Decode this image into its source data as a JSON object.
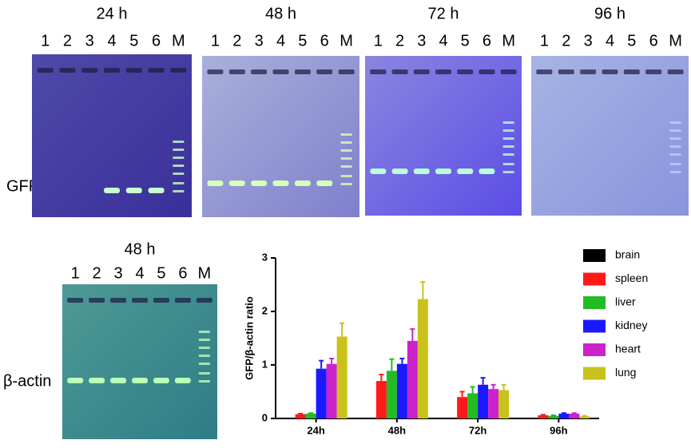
{
  "gels": [
    {
      "title": "24 h",
      "lanes": [
        "1",
        "2",
        "3",
        "4",
        "5",
        "6",
        "M"
      ]
    },
    {
      "title": "48 h",
      "lanes": [
        "1",
        "2",
        "3",
        "4",
        "5",
        "6",
        "M"
      ]
    },
    {
      "title": "72 h",
      "lanes": [
        "1",
        "2",
        "3",
        "4",
        "5",
        "6",
        "M"
      ]
    },
    {
      "title": "96 h",
      "lanes": [
        "1",
        "2",
        "3",
        "4",
        "5",
        "6",
        "M"
      ]
    }
  ],
  "gfp_label": "GFP",
  "actin_label": "β-actin",
  "actin_gel": {
    "title": "48 h",
    "lanes": [
      "1",
      "2",
      "3",
      "4",
      "5",
      "6",
      "M"
    ]
  },
  "chart_data": {
    "type": "bar",
    "y_label": "GFP/β-actin ratio",
    "categories": [
      "24h",
      "48h",
      "72h",
      "96h"
    ],
    "series": [
      {
        "name": "brain",
        "color": "#000000",
        "values": [
          0,
          0,
          0,
          0
        ],
        "errors": [
          0,
          0,
          0,
          0
        ]
      },
      {
        "name": "spleen",
        "color": "#ff1a1a",
        "values": [
          0.08,
          0.7,
          0.4,
          0.06
        ],
        "errors": [
          0.01,
          0.12,
          0.1,
          0.01
        ]
      },
      {
        "name": "liver",
        "color": "#22bb22",
        "values": [
          0.09,
          0.89,
          0.47,
          0.05
        ],
        "errors": [
          0.01,
          0.22,
          0.12,
          0.01
        ]
      },
      {
        "name": "kidney",
        "color": "#1a1aff",
        "values": [
          0.93,
          1.02,
          0.63,
          0.09
        ],
        "errors": [
          0.15,
          0.1,
          0.13,
          0.01
        ]
      },
      {
        "name": "heart",
        "color": "#cc22cc",
        "values": [
          1.02,
          1.45,
          0.55,
          0.09
        ],
        "errors": [
          0.1,
          0.22,
          0.08,
          0.01
        ]
      },
      {
        "name": "lung",
        "color": "#c8c21a",
        "values": [
          1.53,
          2.23,
          0.53,
          0.04
        ],
        "errors": [
          0.25,
          0.32,
          0.1,
          0.01
        ]
      }
    ],
    "ylim": [
      0,
      3
    ],
    "yticks": [
      0,
      1,
      2,
      3
    ],
    "legend": "right"
  }
}
